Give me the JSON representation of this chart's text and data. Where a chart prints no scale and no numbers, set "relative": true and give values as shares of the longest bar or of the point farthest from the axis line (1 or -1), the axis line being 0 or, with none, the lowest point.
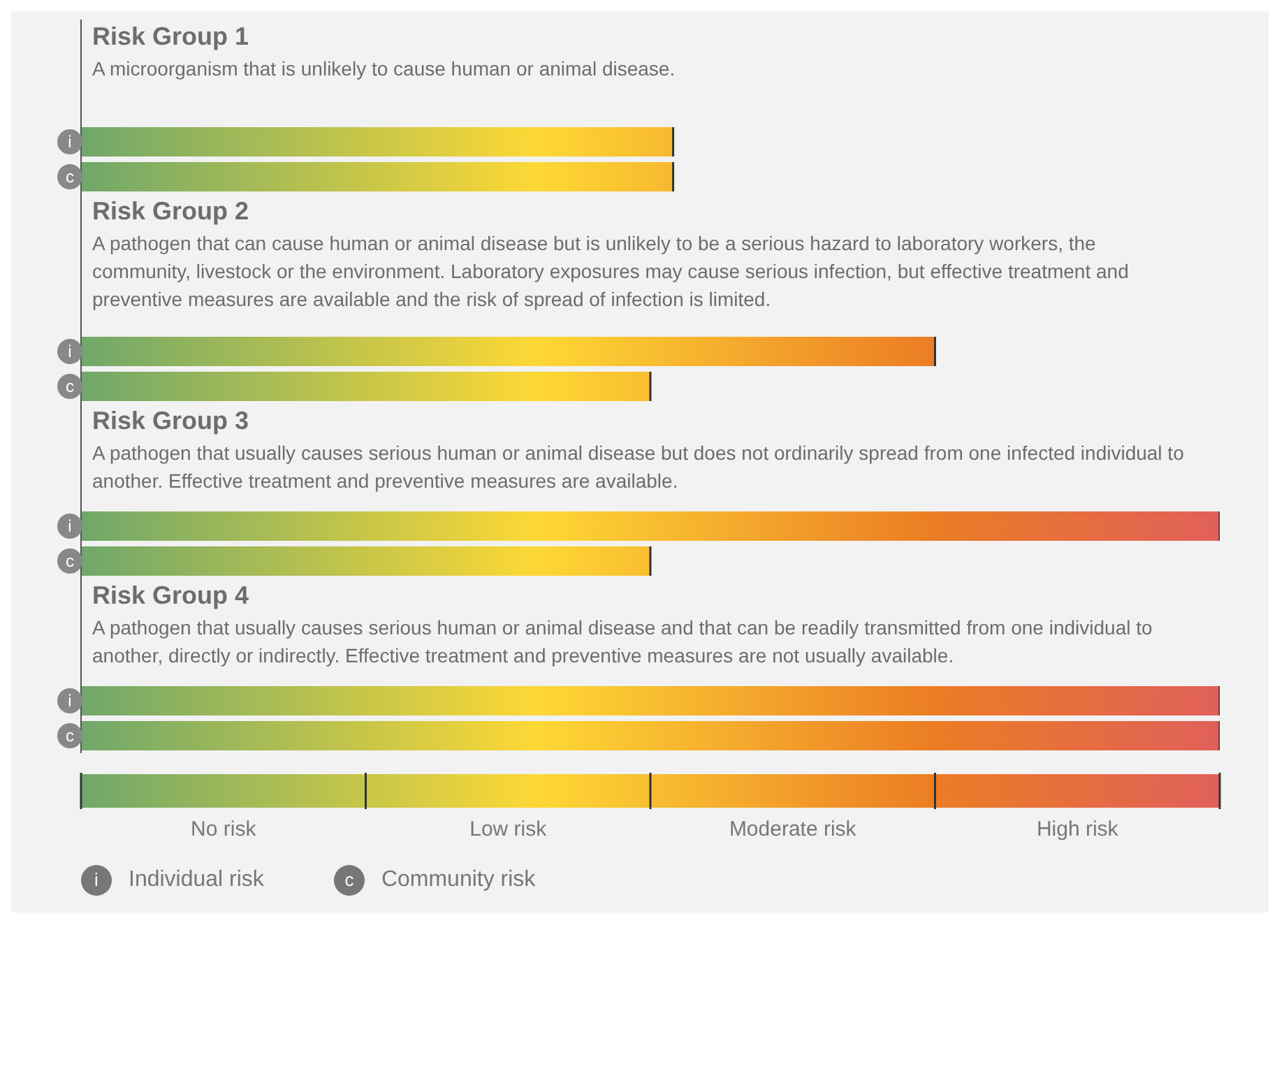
{
  "chart_data": {
    "type": "bar",
    "orientation": "horizontal",
    "relative": true,
    "categories": [
      null,
      null,
      null,
      "i",
      "c",
      null,
      null,
      null,
      null,
      "i",
      "c",
      null,
      null,
      null,
      "i",
      "c",
      null,
      null,
      null,
      "i",
      "c"
    ],
    "values": [
      null,
      null,
      null,
      0.52,
      0.52,
      null,
      null,
      null,
      null,
      0.75,
      0.5,
      null,
      null,
      null,
      1,
      0.5,
      null,
      null,
      null,
      1,
      1
    ],
    "annotations": [
      "Risk Group 1",
      "A microorganism that is unlikely to cause human or animal disease.",
      "Risk Group 2",
      "A pathogen that can cause human or animal disease but is unlikely to be a serious hazard to laboratory workers, the community, livestock or the environment. Laboratory exposures may cause serious infection, but effective treatment and preventive measures are available and the risk of spread of infection is limited.",
      "Risk Group 3",
      "A pathogen that usually causes serious human or animal disease but does not ordinarily spread from one infected individual to another. Effective treatment and preventive measures are available.",
      "Risk Group 4",
      "A pathogen that usually causes serious human or animal disease and that can be readily transmitted from one individual to another, directly or indirectly. Effective treatment and preventive measures are not usually available.",
      "No risk",
      "Low risk",
      "Moderate risk",
      "High risk",
      "Individual risk",
      "Community risk"
    ]
  }
}
